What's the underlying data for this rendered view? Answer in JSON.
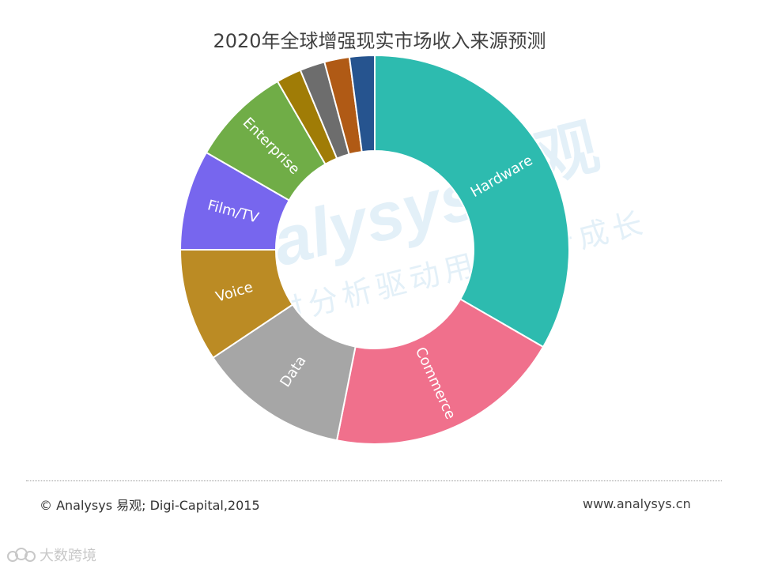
{
  "title": "2020年全球增强现实市场收入来源预测",
  "chart_data": {
    "type": "pie",
    "donut": true,
    "title": "2020年全球增强现实市场收入来源预测",
    "start": "top, clockwise",
    "slices": [
      {
        "label": "Hardware",
        "value": 32,
        "color": "#2dbbaf"
      },
      {
        "label": "Commerce",
        "value": 19,
        "color": "#f0708c"
      },
      {
        "label": "Data",
        "value": 12,
        "color": "#a6a6a6"
      },
      {
        "label": "Voice",
        "value": 9,
        "color": "#bb8b24"
      },
      {
        "label": "Film/TV",
        "value": 8,
        "color": "#7766ee"
      },
      {
        "label": "Enterprise",
        "value": 8,
        "color": "#70ad47"
      },
      {
        "label": "",
        "value": 2,
        "color": "#a07c06"
      },
      {
        "label": "",
        "value": 2,
        "color": "#6d6d6d"
      },
      {
        "label": "",
        "value": 2,
        "color": "#b05a15"
      },
      {
        "label": "",
        "value": 2,
        "color": "#26548f"
      }
    ]
  },
  "watermark": {
    "brand_latin": "Analysys",
    "brand_cn": "易观",
    "slogan": "实时分析驱动用户资产成长"
  },
  "footer": {
    "source": "© Analysys 易观; Digi-Capital,2015",
    "website": "www.analysys.cn"
  },
  "corner_logo": {
    "text": "大数跨境"
  }
}
